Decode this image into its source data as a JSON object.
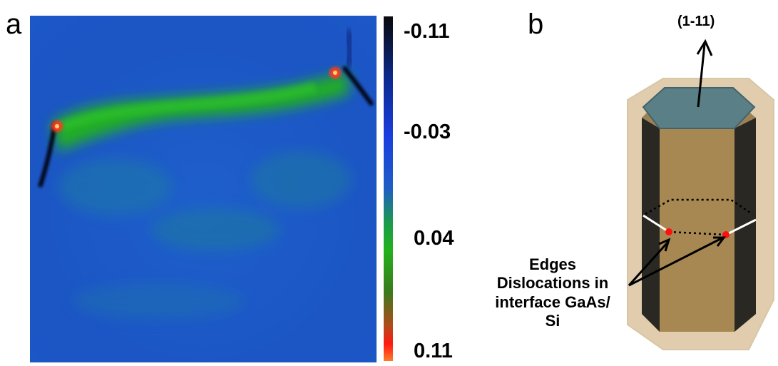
{
  "panel_a": {
    "letter": "a",
    "colorbar": {
      "ticks": [
        "-0.11",
        "-0.03",
        "0.04",
        "0.11"
      ],
      "colors": [
        "#0a0a0a",
        "#0b2a8c",
        "#1a3fe0",
        "#1f5ec4",
        "#1c9a4a",
        "#23b11c",
        "#3a7a1c",
        "#b34a1a",
        "#ff1a10",
        "#ff7a2a"
      ]
    },
    "map_colors": {
      "background": "#1e55c8",
      "band": "#22b21f",
      "core": "#ff3a1a",
      "dislocation": "#050510"
    }
  },
  "panel_b": {
    "letter": "b",
    "direction_label": "(1-11)",
    "annotation": [
      "Edges",
      "Dislocations in",
      "interface GaAs/",
      "Si"
    ],
    "colors": {
      "shell": "#c9a66b",
      "core": "#9c7e4c",
      "dark_facet": "#1e1e1e",
      "top_face": "#5a7f86",
      "dislocation_dot": "#ff1010"
    }
  }
}
